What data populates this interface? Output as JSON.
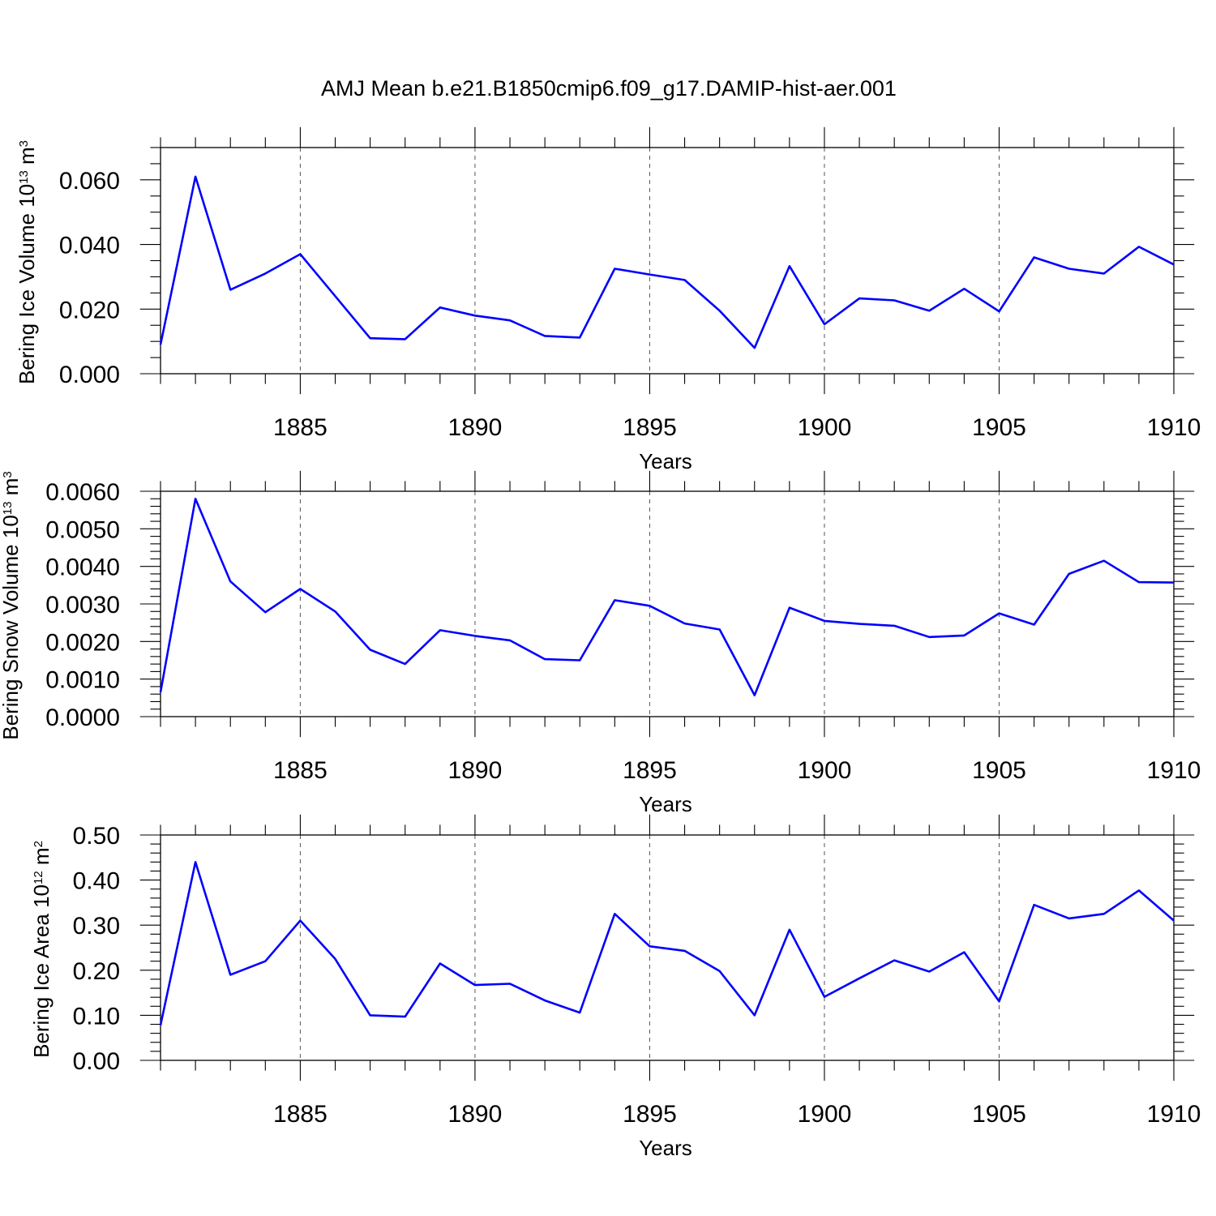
{
  "page": {
    "title": "AMJ Mean b.e21.B1850cmip6.f09_g17.DAMIP-hist-aer.001"
  },
  "colors": {
    "series": "#0000ff",
    "axis": "#000000",
    "grid": "#555555"
  },
  "chart_data": [
    {
      "type": "line",
      "title": "",
      "xlabel": "Years",
      "ylabel": "Bering Ice Volume 10",
      "ylabel_exp": "13",
      "ylabel_unit": " m",
      "ylabel_unit_exp": "3",
      "xlim": [
        1881,
        1910
      ],
      "ylim": [
        0.0,
        0.07
      ],
      "xticks": [
        1885,
        1890,
        1895,
        1900,
        1905,
        1910
      ],
      "xtick_labels": [
        "1885",
        "1890",
        "1895",
        "1900",
        "1905",
        "1910"
      ],
      "yticks": [
        0.0,
        0.02,
        0.04,
        0.06
      ],
      "ytick_labels": [
        "0.000",
        "0.020",
        "0.040",
        "0.060"
      ],
      "yminor_step": 0.005,
      "grid": "vertical dashed at major x ticks",
      "x": [
        1881,
        1882,
        1883,
        1884,
        1885,
        1886,
        1887,
        1888,
        1889,
        1890,
        1891,
        1892,
        1893,
        1894,
        1895,
        1896,
        1897,
        1898,
        1899,
        1900,
        1901,
        1902,
        1903,
        1904,
        1905,
        1906,
        1907,
        1908,
        1909,
        1910
      ],
      "series": [
        {
          "values": [
            0.009,
            0.061,
            0.026,
            0.031,
            0.037,
            0.024,
            0.011,
            0.0107,
            0.0205,
            0.018,
            0.0165,
            0.0117,
            0.0112,
            0.0325,
            0.0307,
            0.029,
            0.0195,
            0.008,
            0.0333,
            0.0153,
            0.0233,
            0.0227,
            0.0195,
            0.0263,
            0.0193,
            0.036,
            0.0325,
            0.031,
            0.0393,
            0.0338
          ]
        }
      ]
    },
    {
      "type": "line",
      "title": "",
      "xlabel": "Years",
      "ylabel": "Bering Snow Volume 10",
      "ylabel_exp": "13",
      "ylabel_unit": " m",
      "ylabel_unit_exp": "3",
      "xlim": [
        1881,
        1910
      ],
      "ylim": [
        0.0,
        0.006
      ],
      "xticks": [
        1885,
        1890,
        1895,
        1900,
        1905,
        1910
      ],
      "xtick_labels": [
        "1885",
        "1890",
        "1895",
        "1900",
        "1905",
        "1910"
      ],
      "yticks": [
        0.0,
        0.001,
        0.002,
        0.003,
        0.004,
        0.005,
        0.006
      ],
      "ytick_labels": [
        "0.0000",
        "0.0010",
        "0.0020",
        "0.0030",
        "0.0040",
        "0.0050",
        "0.0060"
      ],
      "yminor_step": 0.0002,
      "grid": "vertical dashed at major x ticks",
      "x": [
        1881,
        1882,
        1883,
        1884,
        1885,
        1886,
        1887,
        1888,
        1889,
        1890,
        1891,
        1892,
        1893,
        1894,
        1895,
        1896,
        1897,
        1898,
        1899,
        1900,
        1901,
        1902,
        1903,
        1904,
        1905,
        1906,
        1907,
        1908,
        1909,
        1910
      ],
      "series": [
        {
          "values": [
            0.00065,
            0.0058,
            0.0036,
            0.00278,
            0.0034,
            0.0028,
            0.00178,
            0.0014,
            0.0023,
            0.00215,
            0.00203,
            0.00153,
            0.0015,
            0.0031,
            0.00295,
            0.00248,
            0.00232,
            0.00057,
            0.0029,
            0.00255,
            0.00247,
            0.00242,
            0.00212,
            0.00216,
            0.00275,
            0.00245,
            0.0038,
            0.00415,
            0.00358,
            0.00357
          ]
        }
      ]
    },
    {
      "type": "line",
      "title": "",
      "xlabel": "Years",
      "ylabel": "Bering Ice Area 10",
      "ylabel_exp": "12",
      "ylabel_unit": " m",
      "ylabel_unit_exp": "2",
      "xlim": [
        1881,
        1910
      ],
      "ylim": [
        0.0,
        0.5
      ],
      "xticks": [
        1885,
        1890,
        1895,
        1900,
        1905,
        1910
      ],
      "xtick_labels": [
        "1885",
        "1890",
        "1895",
        "1900",
        "1905",
        "1910"
      ],
      "yticks": [
        0.0,
        0.1,
        0.2,
        0.3,
        0.4,
        0.5
      ],
      "ytick_labels": [
        "0.00",
        "0.10",
        "0.20",
        "0.30",
        "0.40",
        "0.50"
      ],
      "yminor_step": 0.02,
      "grid": "vertical dashed at major x ticks",
      "x": [
        1881,
        1882,
        1883,
        1884,
        1885,
        1886,
        1887,
        1888,
        1889,
        1890,
        1891,
        1892,
        1893,
        1894,
        1895,
        1896,
        1897,
        1898,
        1899,
        1900,
        1901,
        1902,
        1903,
        1904,
        1905,
        1906,
        1907,
        1908,
        1909,
        1910
      ],
      "series": [
        {
          "values": [
            0.078,
            0.44,
            0.19,
            0.22,
            0.31,
            0.225,
            0.1,
            0.097,
            0.215,
            0.167,
            0.17,
            0.133,
            0.106,
            0.325,
            0.253,
            0.243,
            0.198,
            0.1,
            0.29,
            0.141,
            0.182,
            0.222,
            0.197,
            0.24,
            0.131,
            0.345,
            0.315,
            0.325,
            0.377,
            0.31
          ]
        }
      ]
    }
  ]
}
